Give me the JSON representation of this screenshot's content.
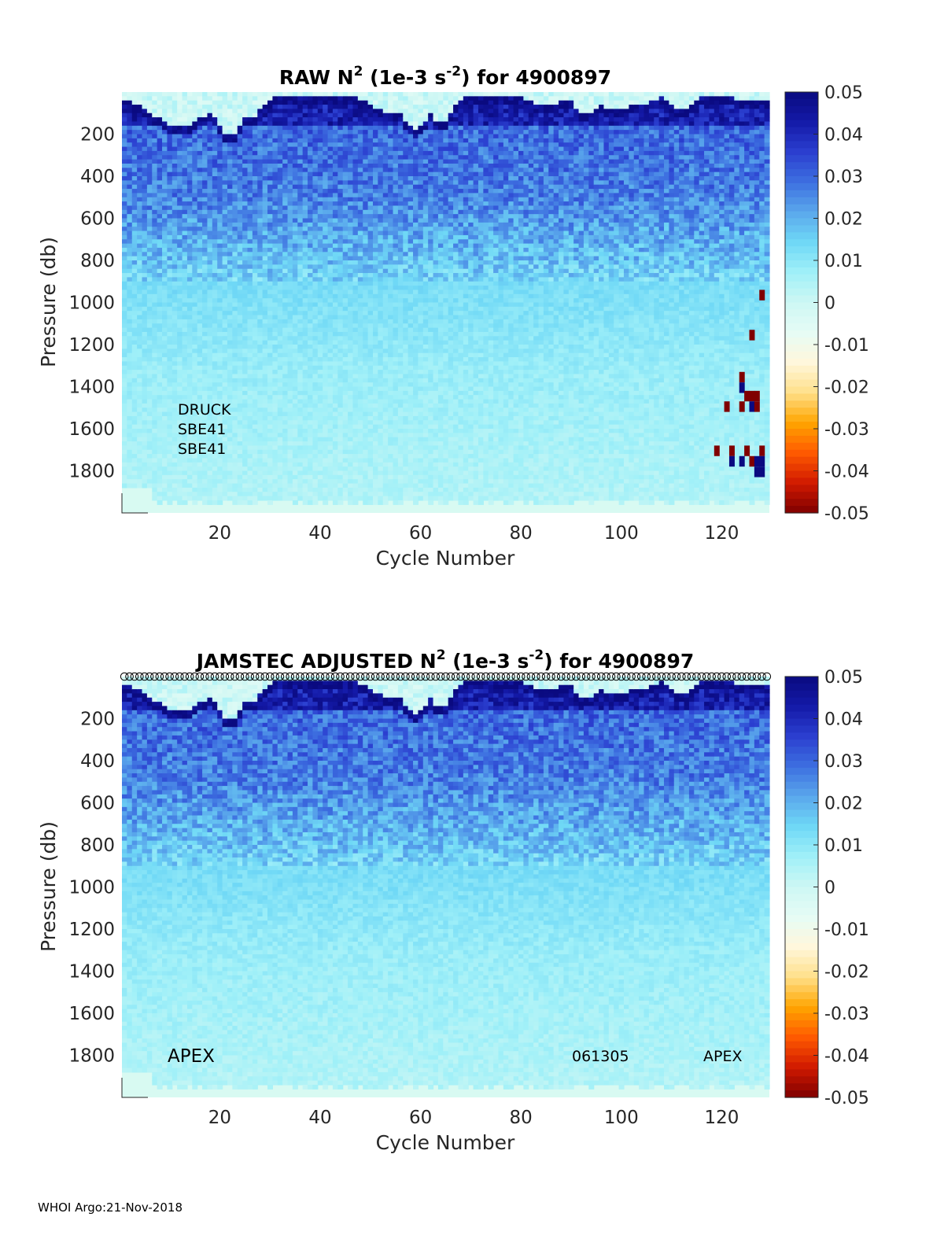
{
  "footer": "WHOI Argo:21-Nov-2018",
  "colors": {
    "colormap": [
      "#800000",
      "#d11a00",
      "#ff5a00",
      "#ffa500",
      "#ffe08a",
      "#fff7dc",
      "#e6fcf5",
      "#cdf7f4",
      "#a0f0f8",
      "#6fd8f6",
      "#5aa8ec",
      "#3d6fe0",
      "#2b3fd0",
      "#141aa8",
      "#0a0a80"
    ],
    "axis": "#262626",
    "title": "#000000"
  },
  "chart_data": [
    {
      "type": "heatmap",
      "title": {
        "prefix": "RAW N",
        "sup1": "2",
        "mid": " (1e-3 s",
        "sup2": "-2",
        "suffix": ") for 4900897"
      },
      "xlabel": "Cycle Number",
      "ylabel": "Pressure (db)",
      "xlim": [
        1,
        129
      ],
      "ylim": [
        2000,
        0
      ],
      "xticks": [
        20,
        40,
        60,
        80,
        100,
        120
      ],
      "yticks": [
        200,
        400,
        600,
        800,
        1000,
        1200,
        1400,
        1600,
        1800
      ],
      "colorbar": {
        "clim": [
          -0.05,
          0.05
        ],
        "ticks": [
          "0.05",
          "0.04",
          "0.03",
          "0.02",
          "0.01",
          "0",
          "-0.01",
          "-0.02",
          "-0.03",
          "-0.04",
          "-0.05"
        ]
      },
      "annotations": [
        "DRUCK",
        "SBE41",
        "SBE41"
      ],
      "anomalies": [
        {
          "x": 128,
          "p": 940,
          "v": -0.05
        },
        {
          "x": 126,
          "p": 1130,
          "v": -0.05
        },
        {
          "x": 124,
          "p": 1330,
          "v": -0.05
        },
        {
          "x": 124,
          "p": 1380,
          "v": 0.05
        },
        {
          "x": 125,
          "p": 1420,
          "v": -0.05
        },
        {
          "x": 126,
          "p": 1420,
          "v": -0.05
        },
        {
          "x": 127,
          "p": 1420,
          "v": -0.05
        },
        {
          "x": 121,
          "p": 1470,
          "v": -0.05
        },
        {
          "x": 124,
          "p": 1470,
          "v": -0.05
        },
        {
          "x": 126,
          "p": 1470,
          "v": 0.05
        },
        {
          "x": 127,
          "p": 1470,
          "v": -0.05
        },
        {
          "x": 119,
          "p": 1680,
          "v": -0.05
        },
        {
          "x": 122,
          "p": 1680,
          "v": -0.05
        },
        {
          "x": 125,
          "p": 1680,
          "v": -0.05
        },
        {
          "x": 128,
          "p": 1680,
          "v": -0.05
        },
        {
          "x": 122,
          "p": 1730,
          "v": 0.05
        },
        {
          "x": 124,
          "p": 1730,
          "v": 0.05
        },
        {
          "x": 126,
          "p": 1730,
          "v": -0.05
        },
        {
          "x": 127,
          "p": 1730,
          "v": 0.05
        },
        {
          "x": 128,
          "p": 1730,
          "v": 0.05
        },
        {
          "x": 127,
          "p": 1780,
          "v": 0.05
        },
        {
          "x": 128,
          "p": 1780,
          "v": 0.05
        }
      ]
    },
    {
      "type": "heatmap",
      "title": {
        "prefix": "JAMSTEC  ADJUSTED N",
        "sup1": "2",
        "mid": " (1e-3 s",
        "sup2": "-2",
        "suffix": ") for 4900897"
      },
      "xlabel": "Cycle Number",
      "ylabel": "Pressure (db)",
      "xlim": [
        1,
        129
      ],
      "ylim": [
        2000,
        0
      ],
      "xticks": [
        20,
        40,
        60,
        80,
        100,
        120
      ],
      "yticks": [
        200,
        400,
        600,
        800,
        1000,
        1200,
        1400,
        1600,
        1800
      ],
      "colorbar": {
        "clim": [
          -0.05,
          0.05
        ],
        "ticks": [
          "0.05",
          "0.04",
          "0.03",
          "0.02",
          "0.01",
          "0",
          "-0.01",
          "-0.02",
          "-0.03",
          "-0.04",
          "-0.05"
        ]
      },
      "annotations_left": "APEX",
      "annotations_right": [
        "061305",
        "APEX"
      ],
      "qc_markers": "circles",
      "anomalies": []
    }
  ]
}
